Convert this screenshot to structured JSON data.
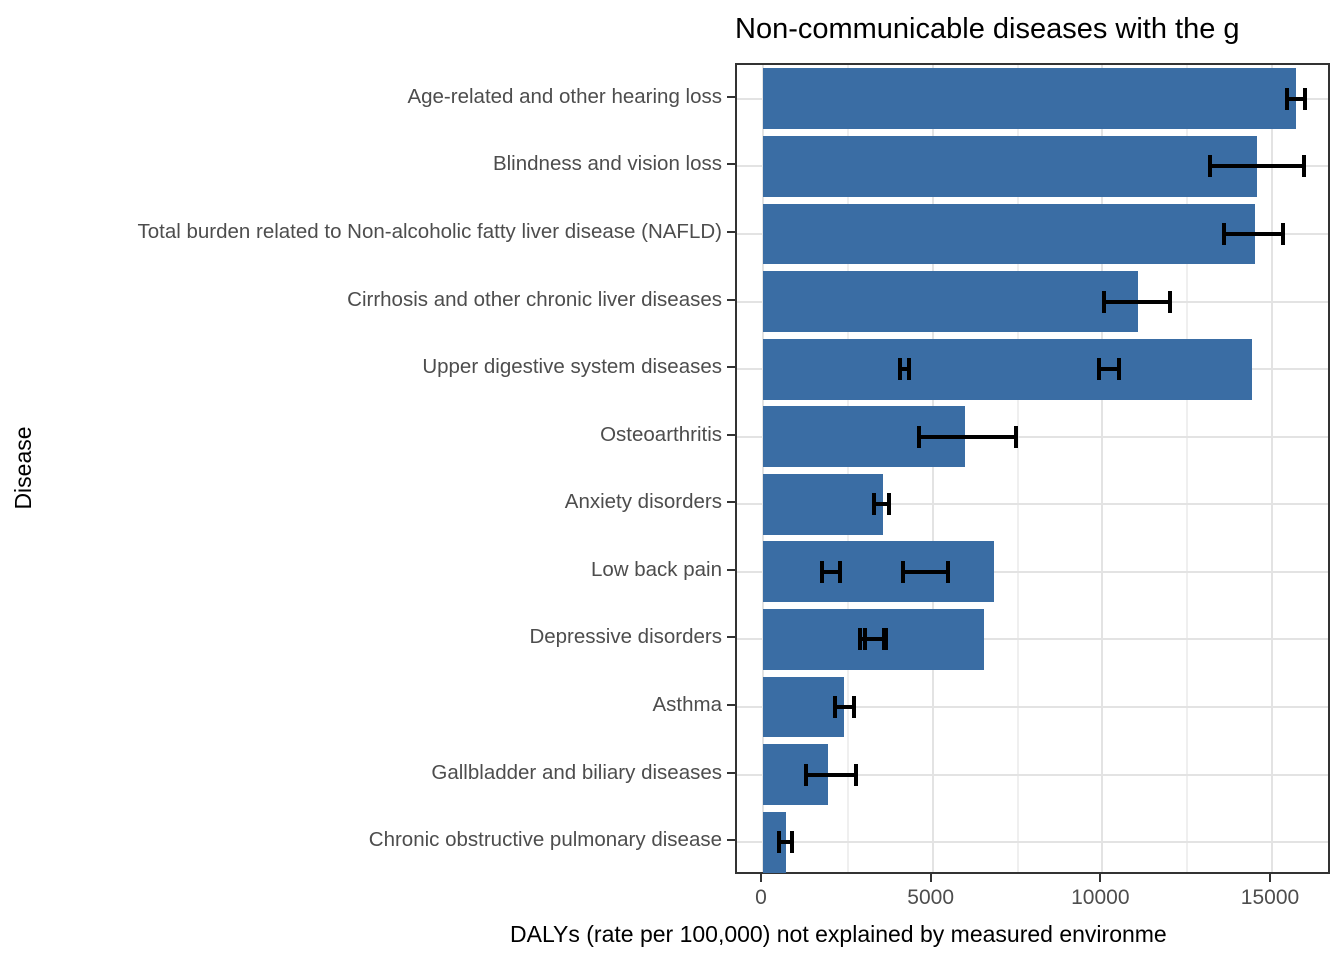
{
  "title": "Non-communicable diseases with the g",
  "axes": {
    "x_label": "DALYs (rate per 100,000) not explained by measured environme",
    "y_label": "Disease"
  },
  "colors": {
    "bar_fill": "#3a6da4",
    "panel_border": "#333333",
    "grid_major": "#e3e3e3",
    "grid_minor": "#efefef",
    "axis_text": "#4d4d4d",
    "error_bar": "#000000",
    "title_text": "#000000"
  },
  "chart_data": {
    "type": "bar",
    "orientation": "horizontal",
    "title": "Non-communicable diseases with the g",
    "xlabel": "DALYs (rate per 100,000) not explained by measured environme",
    "ylabel": "Disease",
    "xlim": [
      -770,
      16780
    ],
    "x_major_ticks": [
      0,
      5000,
      10000,
      15000
    ],
    "x_minor_ticks": [
      2500,
      7500,
      12500
    ],
    "grid": true,
    "legend": "none",
    "categories": [
      "Age-related and other hearing loss",
      "Blindness and vision loss",
      "Total burden related to Non-alcoholic fatty liver disease (NAFLD)",
      "Cirrhosis and other chronic liver diseases",
      "Upper digestive system diseases",
      "Osteoarthritis",
      "Anxiety disorders",
      "Low back pain",
      "Depressive disorders",
      "Asthma",
      "Gallbladder and biliary diseases",
      "Chronic obstructive pulmonary disease"
    ],
    "values": [
      15700,
      14550,
      14500,
      11050,
      14400,
      5950,
      3550,
      6800,
      6500,
      2400,
      1930,
      680
    ],
    "error_bars": [
      [
        [
          15450,
          15980
        ]
      ],
      [
        [
          13180,
          15950
        ]
      ],
      [
        [
          13590,
          15330
        ]
      ],
      [
        [
          10050,
          12000
        ]
      ],
      [
        [
          4030,
          4300
        ],
        [
          9900,
          10490
        ]
      ],
      [
        [
          4600,
          7450
        ]
      ],
      [
        [
          3280,
          3710
        ]
      ],
      [
        [
          1740,
          2270
        ],
        [
          4130,
          5450
        ]
      ],
      [
        [
          2860,
          3570
        ],
        [
          3000,
          3620
        ]
      ],
      [
        [
          2120,
          2680
        ]
      ],
      [
        [
          1280,
          2750
        ]
      ],
      [
        [
          470,
          840
        ]
      ]
    ]
  }
}
